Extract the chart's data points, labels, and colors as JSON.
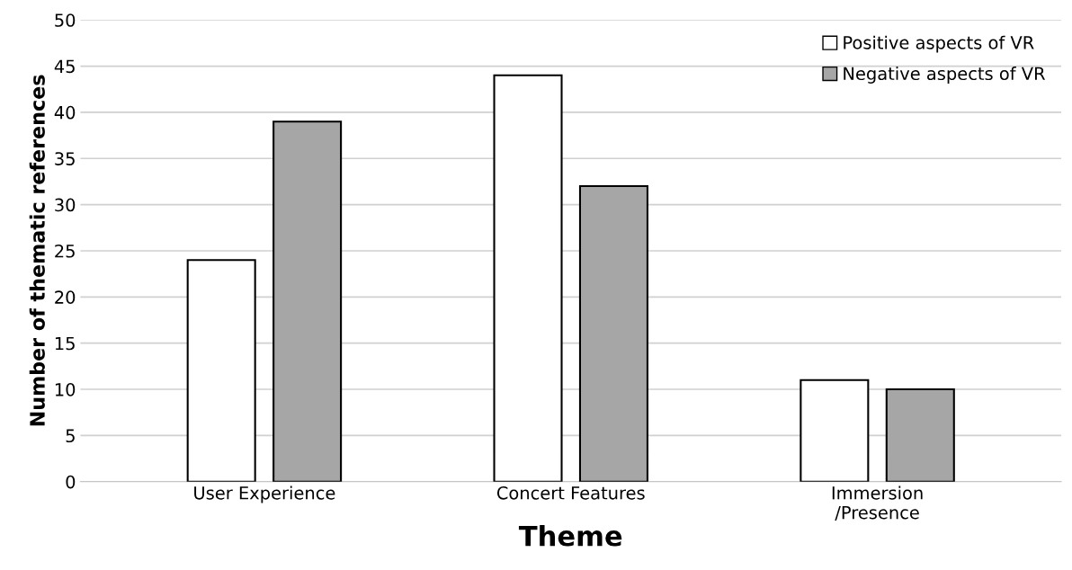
{
  "chart_data": {
    "type": "bar",
    "xlabel": "Theme",
    "ylabel": "Number of thematic references",
    "categories": [
      "User Experience",
      "Concert Features",
      "Immersion\n/Presence"
    ],
    "series": [
      {
        "name": "Positive aspects of VR",
        "color": "#ffffff",
        "values": [
          24,
          44,
          11
        ]
      },
      {
        "name": "Negative aspects of VR",
        "color": "#a6a6a6",
        "values": [
          39,
          32,
          10
        ]
      }
    ],
    "ylim": [
      0,
      50
    ],
    "yticks": [
      0,
      5,
      10,
      15,
      20,
      25,
      30,
      35,
      40,
      45,
      50
    ],
    "grid": "y",
    "legend": "top right"
  }
}
